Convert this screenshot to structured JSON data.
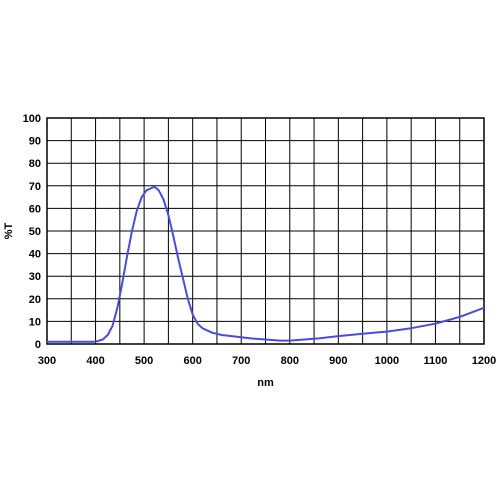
{
  "chart_data": {
    "type": "line",
    "xlabel": "nm",
    "ylabel": "%T",
    "xlim": [
      300,
      1200
    ],
    "ylim": [
      0,
      100
    ],
    "x_ticks": [
      "300",
      "400",
      "500",
      "600",
      "700",
      "800",
      "900",
      "1000",
      "1100",
      "1200"
    ],
    "y_ticks": [
      "0",
      "10",
      "20",
      "30",
      "40",
      "50",
      "60",
      "70",
      "80",
      "90",
      "100"
    ],
    "grid": true,
    "colors": {
      "line": "#4b4bdc",
      "grid": "#000000",
      "background": "#ffffff"
    },
    "series": [
      {
        "x": [
          300,
          350,
          400,
          415,
          425,
          435,
          445,
          455,
          465,
          475,
          485,
          495,
          505,
          515,
          520,
          525,
          530,
          540,
          550,
          560,
          570,
          580,
          590,
          600,
          610,
          620,
          640,
          660,
          680,
          700,
          720,
          750,
          780,
          800,
          830,
          860,
          900,
          950,
          1000,
          1050,
          1100,
          1150,
          1200
        ],
        "y": [
          1,
          1,
          1,
          2,
          4,
          8,
          16,
          27,
          39,
          50,
          59,
          65,
          68,
          69,
          69.5,
          69,
          68,
          64,
          57,
          48,
          38,
          29,
          20,
          13,
          9,
          7,
          5,
          4,
          3.5,
          3,
          2.5,
          2,
          1.5,
          1.5,
          2,
          2.5,
          3.5,
          4.5,
          5.5,
          7,
          9,
          12,
          16
        ]
      }
    ]
  }
}
